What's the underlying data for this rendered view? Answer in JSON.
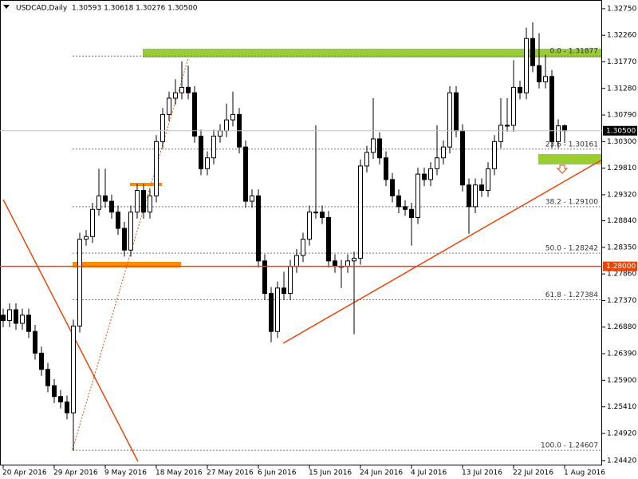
{
  "chart_data": {
    "type": "candlestick",
    "title": "USDCAD,Daily",
    "header_ohlc": "1.30593 1.30618 1.30276 1.30500",
    "up_color": "#ffffff",
    "down_color": "#000000",
    "categories": [
      "20 Apr 2016",
      null,
      null,
      null,
      null,
      null,
      null,
      null,
      "29 Apr 2016",
      null,
      null,
      null,
      null,
      null,
      null,
      null,
      "9 May 2016",
      null,
      null,
      null,
      null,
      null,
      null,
      null,
      "18 May 2016",
      null,
      null,
      null,
      null,
      null,
      null,
      null,
      "27 May 2016",
      null,
      null,
      null,
      null,
      null,
      null,
      null,
      "6 Jun 2016",
      null,
      null,
      null,
      null,
      null,
      null,
      null,
      "15 Jun 2016",
      null,
      null,
      null,
      null,
      null,
      null,
      null,
      "24 Jun 2016",
      null,
      null,
      null,
      null,
      null,
      null,
      null,
      "4 Jul 2016",
      null,
      null,
      null,
      null,
      null,
      null,
      null,
      "13 Jul 2016",
      null,
      null,
      null,
      null,
      null,
      null,
      null,
      "22 Jul 2016",
      null,
      null,
      null,
      null,
      null,
      null,
      null,
      "1 Aug 2016"
    ],
    "open": [
      1.271,
      1.27,
      1.272,
      1.2695,
      1.271,
      1.268,
      1.264,
      1.261,
      1.258,
      1.256,
      1.255,
      1.253,
      1.269,
      1.285,
      1.2855,
      1.2905,
      1.293,
      1.292,
      1.29,
      1.287,
      1.283,
      1.29,
      1.294,
      1.29,
      1.293,
      1.303,
      1.308,
      1.311,
      1.312,
      1.313,
      1.312,
      1.304,
      1.298,
      1.3,
      1.304,
      1.305,
      1.307,
      1.308,
      1.302,
      1.292,
      1.293,
      1.281,
      1.275,
      1.268,
      1.276,
      1.275,
      1.28,
      1.282,
      1.285,
      1.29,
      1.29,
      1.289,
      1.281,
      1.28,
      1.28,
      1.281,
      1.2815,
      1.2985,
      1.301,
      1.3035,
      1.3,
      1.296,
      1.293,
      1.291,
      1.2905,
      1.289,
      1.297,
      1.296,
      1.298,
      1.3,
      1.302,
      1.312,
      1.305,
      1.295,
      1.291,
      1.295,
      1.294,
      1.298,
      1.303,
      1.306,
      1.306,
      1.313,
      1.312,
      1.322,
      1.317,
      1.314,
      1.315,
      1.303,
      1.30593
    ],
    "high": [
      1.2722,
      1.2732,
      1.2732,
      1.2722,
      1.2722,
      1.2692,
      1.2652,
      1.2622,
      1.2592,
      1.2572,
      1.2562,
      1.2702,
      1.2862,
      1.2867,
      1.2917,
      1.298,
      1.298,
      1.2932,
      1.2912,
      1.2882,
      1.2912,
      1.2952,
      1.2952,
      1.2942,
      1.3042,
      1.3092,
      1.3122,
      1.3145,
      1.3178,
      1.317,
      1.3132,
      1.3052,
      1.3012,
      1.3052,
      1.3062,
      1.31,
      1.3122,
      1.3092,
      1.3032,
      1.2942,
      1.2942,
      1.2822,
      1.2762,
      1.2772,
      1.279,
      1.2812,
      1.2832,
      1.2862,
      1.2912,
      1.306,
      1.2912,
      1.2902,
      1.2822,
      1.2812,
      1.2822,
      1.2827,
      1.2997,
      1.3022,
      1.311,
      1.3047,
      1.3012,
      1.2972,
      1.2942,
      1.2922,
      1.2917,
      1.2982,
      1.2982,
      1.2992,
      1.306,
      1.3032,
      1.3132,
      1.3132,
      1.3062,
      1.2962,
      1.2962,
      1.2962,
      1.2992,
      1.3042,
      1.311,
      1.311,
      1.318,
      1.3142,
      1.324,
      1.325,
      1.323,
      1.319,
      1.3162,
      1.3071,
      1.30618
    ],
    "low": [
      1.2688,
      1.2688,
      1.2683,
      1.2683,
      1.2668,
      1.2628,
      1.2598,
      1.2568,
      1.2548,
      1.2538,
      1.2518,
      1.246,
      1.2678,
      1.2838,
      1.2843,
      1.2893,
      1.2908,
      1.2888,
      1.2858,
      1.2818,
      1.2818,
      1.2888,
      1.2888,
      1.2888,
      1.2918,
      1.3018,
      1.3068,
      1.3098,
      1.3108,
      1.3108,
      1.3028,
      1.2968,
      1.2968,
      1.2988,
      1.3028,
      1.3038,
      1.3058,
      1.3008,
      1.2908,
      1.2908,
      1.2798,
      1.2738,
      1.266,
      1.2668,
      1.2738,
      1.2738,
      1.2788,
      1.2808,
      1.2838,
      1.2888,
      1.2878,
      1.2798,
      1.2788,
      1.276,
      1.2788,
      1.2675,
      1.2803,
      1.2973,
      1.2998,
      1.2988,
      1.2948,
      1.2918,
      1.2898,
      1.2893,
      1.2838,
      1.2878,
      1.2948,
      1.2948,
      1.2968,
      1.2988,
      1.3008,
      1.3038,
      1.2938,
      1.286,
      1.2898,
      1.2928,
      1.2928,
      1.2968,
      1.3018,
      1.3048,
      1.3048,
      1.3108,
      1.3108,
      1.3158,
      1.3128,
      1.3128,
      1.3018,
      1.3018,
      1.30276
    ],
    "close": [
      1.27,
      1.272,
      1.2695,
      1.271,
      1.268,
      1.264,
      1.261,
      1.258,
      1.256,
      1.255,
      1.253,
      1.269,
      1.285,
      1.2855,
      1.2905,
      1.293,
      1.292,
      1.29,
      1.287,
      1.283,
      1.29,
      1.294,
      1.29,
      1.293,
      1.303,
      1.308,
      1.311,
      1.312,
      1.313,
      1.312,
      1.304,
      1.298,
      1.3,
      1.304,
      1.305,
      1.307,
      1.308,
      1.302,
      1.292,
      1.293,
      1.281,
      1.275,
      1.268,
      1.276,
      1.275,
      1.28,
      1.282,
      1.285,
      1.29,
      1.29,
      1.289,
      1.281,
      1.28,
      1.28,
      1.281,
      1.2815,
      1.2985,
      1.301,
      1.3035,
      1.3,
      1.296,
      1.293,
      1.291,
      1.2905,
      1.289,
      1.297,
      1.296,
      1.298,
      1.3,
      1.302,
      1.312,
      1.305,
      1.295,
      1.291,
      1.295,
      1.294,
      1.298,
      1.303,
      1.306,
      1.306,
      1.313,
      1.312,
      1.322,
      1.317,
      1.314,
      1.315,
      1.303,
      1.3059,
      1.305
    ],
    "ylim": [
      1.2433,
      1.3291
    ],
    "yticks": [
      {
        "value": 1.3275,
        "label": "1.32750"
      },
      {
        "value": 1.3226,
        "label": "1.32260"
      },
      {
        "value": 1.3177,
        "label": "1.31770"
      },
      {
        "value": 1.3128,
        "label": "1.31280"
      },
      {
        "value": 1.3079,
        "label": "1.30790"
      },
      {
        "value": 1.303,
        "label": "1.30300"
      },
      {
        "value": 1.2981,
        "label": "1.29810"
      },
      {
        "value": 1.2932,
        "label": "1.29320"
      },
      {
        "value": 1.2884,
        "label": "1.28840"
      },
      {
        "value": 1.2835,
        "label": "1.28350"
      },
      {
        "value": 1.2786,
        "label": "1.27860"
      },
      {
        "value": 1.2737,
        "label": "1.27370"
      },
      {
        "value": 1.2688,
        "label": "1.26880"
      },
      {
        "value": 1.2639,
        "label": "1.26390"
      },
      {
        "value": 1.259,
        "label": "1.25900"
      },
      {
        "value": 1.2541,
        "label": "1.25410"
      },
      {
        "value": 1.2492,
        "label": "1.24920"
      },
      {
        "value": 1.2442,
        "label": "1.24420"
      }
    ],
    "fib_levels": [
      {
        "value": 1.31877,
        "label": "0.0 - 1.31877"
      },
      {
        "value": 1.30161,
        "label": "23.6 - 1.30161"
      },
      {
        "value": 1.291,
        "label": "38.2 - 1.29100"
      },
      {
        "value": 1.28242,
        "label": "50.0 - 1.28242"
      },
      {
        "value": 1.27384,
        "label": "61.8 - 1.27384"
      },
      {
        "value": 1.24607,
        "label": "100.0 - 1.24607"
      }
    ],
    "price_markers": [
      {
        "value": 1.305,
        "label": "1.30500",
        "color": "#000000",
        "line_color": "#c0c0c0"
      },
      {
        "value": 1.28,
        "label": "1.28000",
        "color": "#e8470c",
        "line_color": "#e8470c"
      }
    ]
  }
}
